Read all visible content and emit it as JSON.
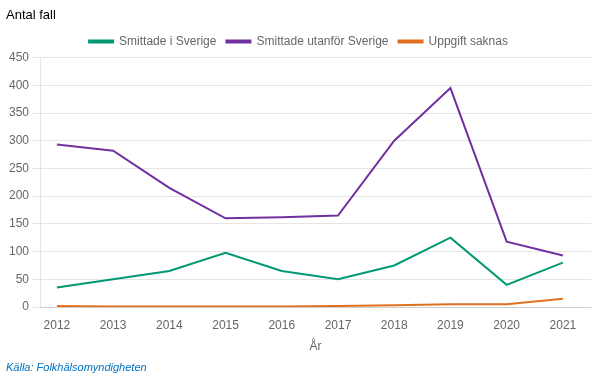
{
  "chart_data": {
    "type": "line",
    "ylabel": "Antal fall",
    "xlabel": "År",
    "x": [
      2012,
      2013,
      2014,
      2015,
      2016,
      2017,
      2018,
      2019,
      2020,
      2021
    ],
    "series": [
      {
        "name": "Smittade i Sverige",
        "color": "#009973",
        "values": [
          35,
          50,
          65,
          98,
          65,
          50,
          75,
          125,
          40,
          80
        ]
      },
      {
        "name": "Smittade utanför Sverige",
        "color": "#7030a0",
        "values": [
          293,
          282,
          215,
          160,
          162,
          165,
          300,
          395,
          118,
          93
        ]
      },
      {
        "name": "Uppgift saknas",
        "color": "#e07020",
        "values": [
          2,
          1,
          1,
          1,
          1,
          2,
          3,
          5,
          5,
          15
        ]
      }
    ],
    "xlim": [
      2011.7,
      2021.5
    ],
    "xticks": [
      2012,
      2013,
      2014,
      2015,
      2016,
      2017,
      2018,
      2019,
      2020,
      2021
    ],
    "ylim": [
      0,
      450
    ],
    "yticks": [
      0,
      50,
      100,
      150,
      200,
      250,
      300,
      350,
      400,
      450
    ],
    "grid": "y",
    "legend": "top",
    "annotations": [
      "Källa: Folkhälsomyndigheten"
    ]
  }
}
